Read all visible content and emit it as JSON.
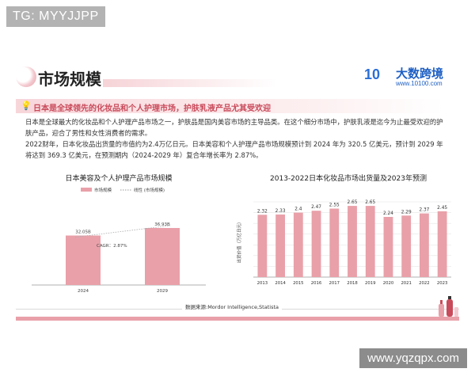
{
  "overlay_tag": "TG: MYYJJPP",
  "watermark": "www.yqzqpx.com",
  "slide": {
    "title": "市场规模",
    "logo": {
      "mark": "10",
      "name": "大数跨境",
      "url": "www.10100.com"
    },
    "highlight": "日本是全球领先的化妆品和个人护理市场，护肤乳液产品尤其受欢迎",
    "para1": "日本是全球最大的化妆品和个人护理产品市场之一，护肤品是国内美容市场的主导品类。在这个细分市场中，护肤乳液是迄今为止最受欢迎的护肤产品，迎合了男性和女性消费者的需求。",
    "para2": "2022财年，日本化妆品出货量的市值约为2.4万亿日元。日本美容和个人护理产品市场规模预计到 2024 年为 320.5 亿美元，预计到 2029 年将达到 369.3 亿美元，在预测期内（2024-2029 年）复合年增长率为 2.87%。",
    "source": "数据来源:Mordor Intelligence,Statista"
  },
  "colors": {
    "bar": "#e9a0a9",
    "accent": "#c94a5a",
    "logo": "#1e5fc4"
  },
  "chart_data": [
    {
      "type": "bar",
      "title": "日本美容及个人护理产品市场规模",
      "legend": [
        "市场规模",
        "线性 (市场规模)"
      ],
      "categories": [
        "2024",
        "2029"
      ],
      "values": [
        32.05,
        36.93
      ],
      "value_labels": [
        "32.05B",
        "36.93B"
      ],
      "annotation": "CAGR：2.87%",
      "ylim": [
        0,
        40
      ],
      "trendline": true
    },
    {
      "type": "bar",
      "title": "2013-2022日本化妆品市场出货量及2023年预测",
      "ylabel": "出货价值（万亿日元）",
      "categories": [
        "2013",
        "2014",
        "2015",
        "2016",
        "2017",
        "2018",
        "2019",
        "2020",
        "2021",
        "2022",
        "2023"
      ],
      "values": [
        2.32,
        2.33,
        2.4,
        2.47,
        2.55,
        2.65,
        2.65,
        2.24,
        2.29,
        2.37,
        2.45
      ],
      "ylim": [
        0,
        2.8
      ],
      "grid": true
    }
  ]
}
